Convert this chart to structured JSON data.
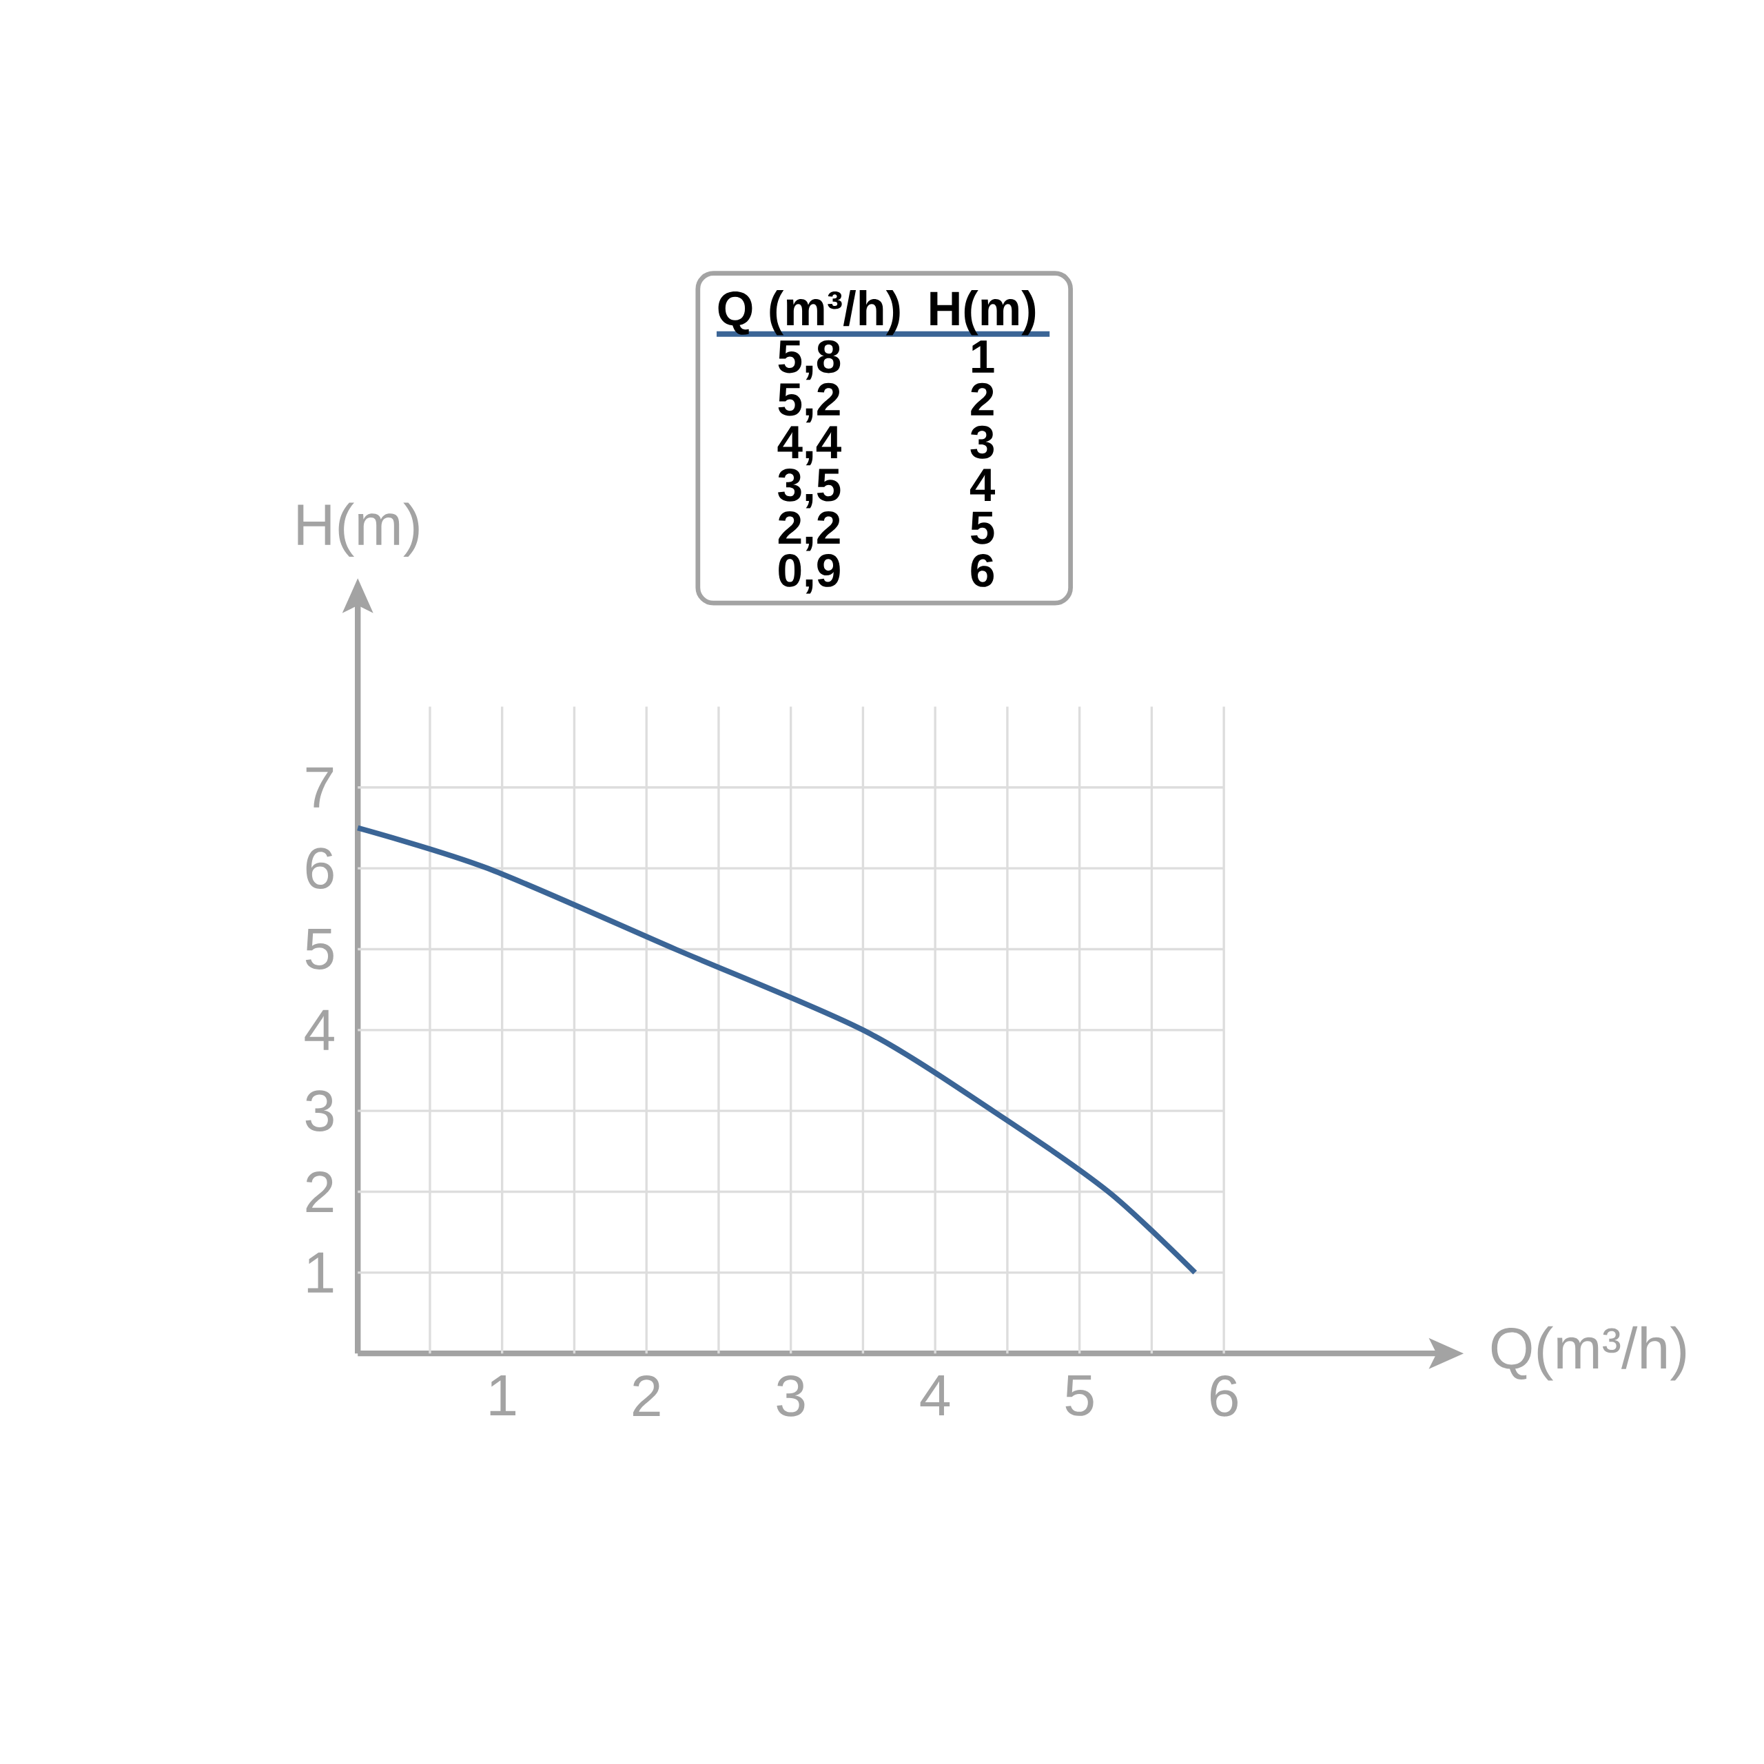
{
  "chart_data": {
    "type": "line",
    "xlabel": "Q(m³/h)",
    "ylabel": "H(m)",
    "x": [
      0,
      0.9,
      2.2,
      3.5,
      4.4,
      5.2,
      5.8
    ],
    "series": [
      {
        "color": "#3b6596",
        "values": [
          6.5,
          6,
          5,
          4,
          3,
          2,
          1
        ]
      }
    ],
    "xlim": [
      0,
      7.5
    ],
    "ylim": [
      0,
      9.3
    ],
    "xticks": [
      {
        "value": 0.5,
        "label": null
      },
      1,
      {
        "value": 1.5,
        "label": null
      },
      2,
      {
        "value": 2.5,
        "label": null
      },
      3,
      {
        "value": 3.5,
        "label": null
      },
      4,
      {
        "value": 4.5,
        "label": null
      },
      5,
      {
        "value": 5.5,
        "label": null
      },
      6
    ],
    "yticks": [
      1,
      2,
      3,
      4,
      5,
      6,
      7
    ],
    "grid": true,
    "annotations": [
      "Q (m³/h)",
      "H(m)",
      "5,8",
      "1",
      "5,2",
      "2",
      "4,4",
      "3",
      "3,5",
      "4",
      "2,2",
      "5",
      "0,9",
      "6"
    ]
  }
}
